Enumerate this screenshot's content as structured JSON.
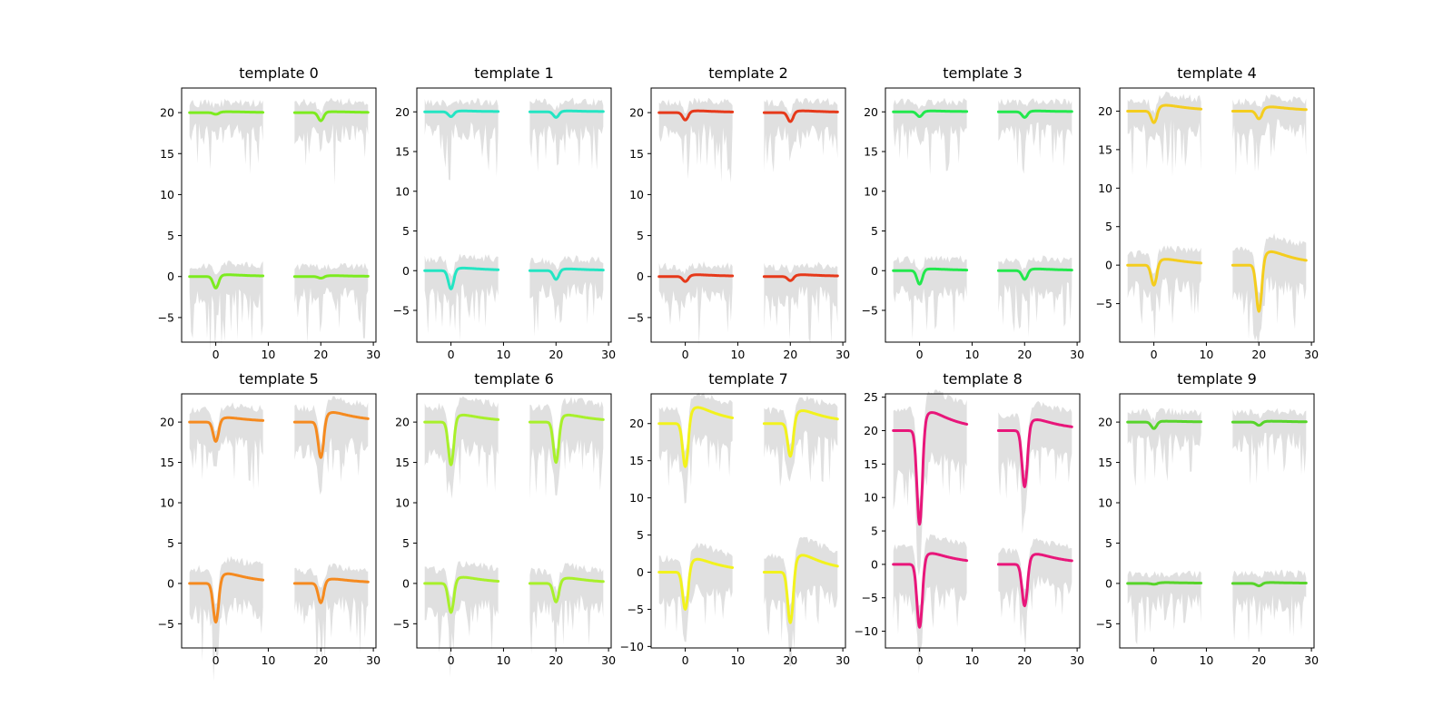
{
  "figure": {
    "background": "#ffffff",
    "envelope_color": "#d6d6d6",
    "mean_line_color": "#808080"
  },
  "chart_data": [
    {
      "type": "line",
      "title": "template 0",
      "color": "#7ceb1f",
      "xlim": [
        -6.5,
        30.5
      ],
      "ylim": [
        -8,
        23
      ],
      "xticks": [
        0,
        10,
        20,
        30
      ],
      "yticks": [
        -5,
        0,
        5,
        10,
        15,
        20
      ],
      "channels": [
        {
          "offset": 20,
          "lane": 1,
          "dip": -1.0
        },
        {
          "offset": 0,
          "lane": 0,
          "dip": -1.4
        },
        {
          "offset": 20,
          "lane": 2,
          "dip": -0.2
        },
        {
          "offset": 0,
          "lane": 3,
          "dip": -0.2
        }
      ],
      "overshoot": [
        0.1,
        0.2,
        0.1,
        0.1
      ]
    },
    {
      "type": "line",
      "title": "template 1",
      "color": "#24e5c3",
      "xlim": [
        -6.5,
        30.5
      ],
      "ylim": [
        -9,
        23
      ],
      "xticks": [
        0,
        10,
        20,
        30
      ],
      "yticks": [
        -5,
        0,
        5,
        10,
        15,
        20
      ],
      "channels": [
        {
          "offset": 20,
          "lane": 1,
          "dip": -0.7
        },
        {
          "offset": 0,
          "lane": 0,
          "dip": -2.3
        },
        {
          "offset": 20,
          "lane": 2,
          "dip": -0.6
        },
        {
          "offset": 0,
          "lane": 3,
          "dip": -1.1
        }
      ],
      "overshoot": [
        0.1,
        0.3,
        0.1,
        0.2
      ]
    },
    {
      "type": "line",
      "title": "template 2",
      "color": "#e6391a",
      "xlim": [
        -6.5,
        30.5
      ],
      "ylim": [
        -8,
        23
      ],
      "xticks": [
        0,
        10,
        20,
        30
      ],
      "yticks": [
        -5,
        0,
        5,
        10,
        15,
        20
      ],
      "channels": [
        {
          "offset": 20,
          "lane": 1,
          "dip": -1.1
        },
        {
          "offset": 0,
          "lane": 0,
          "dip": -0.6
        },
        {
          "offset": 20,
          "lane": 2,
          "dip": -0.9
        },
        {
          "offset": 0,
          "lane": 3,
          "dip": -0.5
        }
      ],
      "overshoot": [
        0.2,
        0.2,
        0.2,
        0.2
      ]
    },
    {
      "type": "line",
      "title": "template 3",
      "color": "#22e84d",
      "xlim": [
        -6.5,
        30.5
      ],
      "ylim": [
        -9,
        23
      ],
      "xticks": [
        0,
        10,
        20,
        30
      ],
      "yticks": [
        -5,
        0,
        5,
        10,
        15,
        20
      ],
      "channels": [
        {
          "offset": 20,
          "lane": 1,
          "dip": -0.7
        },
        {
          "offset": 0,
          "lane": 0,
          "dip": -1.7
        },
        {
          "offset": 20,
          "lane": 2,
          "dip": -0.6
        },
        {
          "offset": 0,
          "lane": 3,
          "dip": -1.1
        }
      ],
      "overshoot": [
        0.1,
        0.2,
        0.1,
        0.2
      ]
    },
    {
      "type": "line",
      "title": "template 4",
      "color": "#f4cd1e",
      "xlim": [
        -6.5,
        30.5
      ],
      "ylim": [
        -10,
        23
      ],
      "xticks": [
        0,
        10,
        20,
        30
      ],
      "yticks": [
        -5,
        0,
        5,
        10,
        15,
        20
      ],
      "channels": [
        {
          "offset": 20,
          "lane": 1,
          "dip": -1.0
        },
        {
          "offset": 0,
          "lane": 0,
          "dip": -2.6
        },
        {
          "offset": 20,
          "lane": 2,
          "dip": -1.5
        },
        {
          "offset": 0,
          "lane": 3,
          "dip": -6.0
        }
      ],
      "overshoot": [
        0.5,
        0.7,
        0.7,
        1.6
      ]
    },
    {
      "type": "line",
      "title": "template 5",
      "color": "#f58a1f",
      "xlim": [
        -6.5,
        30.5
      ],
      "ylim": [
        -8,
        23.5
      ],
      "xticks": [
        0,
        10,
        20,
        30
      ],
      "yticks": [
        -5,
        0,
        5,
        10,
        15,
        20
      ],
      "channels": [
        {
          "offset": 20,
          "lane": 1,
          "dip": -4.4
        },
        {
          "offset": 0,
          "lane": 0,
          "dip": -4.8
        },
        {
          "offset": 20,
          "lane": 2,
          "dip": -2.4
        },
        {
          "offset": 0,
          "lane": 3,
          "dip": -2.4
        }
      ],
      "overshoot": [
        1.1,
        1.1,
        0.5,
        0.5
      ]
    },
    {
      "type": "line",
      "title": "template 6",
      "color": "#a8f02b",
      "xlim": [
        -6.5,
        30.5
      ],
      "ylim": [
        -8,
        23.5
      ],
      "xticks": [
        0,
        10,
        20,
        30
      ],
      "yticks": [
        -5,
        0,
        5,
        10,
        15,
        20
      ],
      "channels": [
        {
          "offset": 20,
          "lane": 1,
          "dip": -5.0
        },
        {
          "offset": 0,
          "lane": 0,
          "dip": -3.6
        },
        {
          "offset": 20,
          "lane": 2,
          "dip": -5.3
        },
        {
          "offset": 0,
          "lane": 3,
          "dip": -2.3
        }
      ],
      "overshoot": [
        0.8,
        0.7,
        0.8,
        0.6
      ]
    },
    {
      "type": "line",
      "title": "template 7",
      "color": "#f2f21d",
      "xlim": [
        -6.5,
        30.5
      ],
      "ylim": [
        -10.2,
        24
      ],
      "xticks": [
        0,
        10,
        20,
        30
      ],
      "yticks": [
        -10,
        -5,
        0,
        5,
        10,
        15,
        20
      ],
      "channels": [
        {
          "offset": 20,
          "lane": 1,
          "dip": -4.4
        },
        {
          "offset": 0,
          "lane": 0,
          "dip": -5.0
        },
        {
          "offset": 20,
          "lane": 2,
          "dip": -5.8
        },
        {
          "offset": 0,
          "lane": 3,
          "dip": -6.8
        }
      ],
      "overshoot": [
        1.6,
        1.6,
        2.0,
        2.1
      ]
    },
    {
      "type": "line",
      "title": "template 8",
      "color": "#e8167a",
      "xlim": [
        -6.5,
        30.5
      ],
      "ylim": [
        -12.5,
        25.5
      ],
      "xticks": [
        0,
        10,
        20,
        30
      ],
      "yticks": [
        -10,
        -5,
        0,
        5,
        10,
        15,
        20,
        25
      ],
      "channels": [
        {
          "offset": 20,
          "lane": 1,
          "dip": -8.4
        },
        {
          "offset": 0,
          "lane": 0,
          "dip": -9.4
        },
        {
          "offset": 20,
          "lane": 2,
          "dip": -14.0
        },
        {
          "offset": 0,
          "lane": 3,
          "dip": -6.2
        }
      ],
      "overshoot": [
        1.5,
        1.5,
        2.5,
        1.4
      ]
    },
    {
      "type": "line",
      "title": "template 9",
      "color": "#57d42a",
      "xlim": [
        -6.5,
        30.5
      ],
      "ylim": [
        -8,
        23.5
      ],
      "xticks": [
        0,
        10,
        20,
        30
      ],
      "yticks": [
        -5,
        0,
        5,
        10,
        15,
        20
      ],
      "channels": [
        {
          "offset": 20,
          "lane": 1,
          "dip": -0.4
        },
        {
          "offset": 0,
          "lane": 0,
          "dip": -0.1
        },
        {
          "offset": 20,
          "lane": 2,
          "dip": -0.8
        },
        {
          "offset": 0,
          "lane": 3,
          "dip": -0.3
        }
      ],
      "overshoot": [
        0.1,
        0.1,
        0.1,
        0.1
      ]
    }
  ]
}
